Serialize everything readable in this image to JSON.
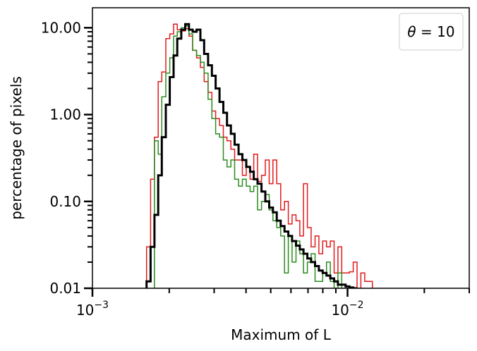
{
  "chart_data": {
    "type": "step-histogram",
    "xscale": "log",
    "yscale": "log",
    "xlim": [
      0.001,
      0.03
    ],
    "ylim": [
      0.01,
      17
    ],
    "xlabel": "Maximum of L",
    "ylabel": "percentage of pixels",
    "legend": {
      "text": "θ = 10",
      "placement": "top-right"
    },
    "x_major_ticks": [
      {
        "value": 0.001,
        "base": "10",
        "exp": "−3"
      },
      {
        "value": 0.01,
        "base": "10",
        "exp": "−2"
      }
    ],
    "x_minor_ticks": [
      0.002,
      0.003,
      0.004,
      0.005,
      0.006,
      0.007,
      0.008,
      0.009,
      0.02,
      0.03
    ],
    "y_major_ticks": [
      {
        "value": 0.01,
        "label": "0.01"
      },
      {
        "value": 0.1,
        "label": "0.10"
      },
      {
        "value": 1,
        "label": "1.00"
      },
      {
        "value": 10,
        "label": "10.00"
      }
    ],
    "series": [
      {
        "color": "#e31a1c",
        "width": 1.5,
        "edges": [
          0.00163,
          0.00169,
          0.00175,
          0.00181,
          0.00187,
          0.00194,
          0.00201,
          0.00208,
          0.00215,
          0.00223,
          0.00231,
          0.00239,
          0.00247,
          0.00256,
          0.00265,
          0.00274,
          0.00284,
          0.00294,
          0.00304,
          0.00315,
          0.00326,
          0.00337,
          0.00349,
          0.00361,
          0.00374,
          0.00387,
          0.00401,
          0.00415,
          0.00429,
          0.00444,
          0.0046,
          0.00476,
          0.00493,
          0.0051,
          0.00528,
          0.00547,
          0.00566,
          0.00586,
          0.00606,
          0.00628,
          0.0065,
          0.00672,
          0.00696,
          0.0072,
          0.00746,
          0.00772,
          0.00799,
          0.00827,
          0.00856,
          0.00886,
          0.00917,
          0.00949,
          0.00983,
          0.01017,
          0.01053,
          0.0109,
          0.01128,
          0.01168,
          0.01209,
          0.01251
        ],
        "values": [
          0.03,
          0.18,
          0.55,
          2.4,
          3.1,
          7.5,
          8.5,
          11.0,
          9.5,
          9.2,
          9.8,
          8.0,
          5.5,
          4.5,
          3.5,
          2.4,
          1.8,
          1.1,
          0.9,
          0.75,
          0.55,
          0.5,
          0.4,
          0.3,
          0.3,
          0.2,
          0.25,
          0.18,
          0.35,
          0.17,
          0.2,
          0.3,
          0.16,
          0.3,
          0.16,
          0.08,
          0.1,
          0.055,
          0.07,
          0.06,
          0.04,
          0.16,
          0.05,
          0.03,
          0.04,
          0.025,
          0.035,
          0.03,
          0.035,
          0.015,
          0.03,
          0.015,
          0.015,
          0.0155,
          0.02,
          0.01,
          0.015,
          0.012,
          0.012
        ]
      },
      {
        "color": "#2a8c1e",
        "width": 1.5,
        "edges": [
          0.00175,
          0.00181,
          0.00187,
          0.00194,
          0.00201,
          0.00208,
          0.00215,
          0.00223,
          0.00231,
          0.00239,
          0.00247,
          0.00256,
          0.00265,
          0.00274,
          0.00284,
          0.00294,
          0.00304,
          0.00315,
          0.00326,
          0.00337,
          0.00349,
          0.00361,
          0.00374,
          0.00387,
          0.00401,
          0.00415,
          0.00429,
          0.00444,
          0.0046,
          0.00476,
          0.00493,
          0.0051,
          0.00528,
          0.00547,
          0.00566,
          0.00586,
          0.00606,
          0.00628,
          0.0065,
          0.00672,
          0.00696,
          0.0072,
          0.00746,
          0.00772,
          0.00799,
          0.00827,
          0.00856,
          0.00886,
          0.00917,
          0.00949,
          0.00983
        ],
        "values": [
          0.5,
          0.35,
          1.6,
          3.0,
          4.5,
          8.0,
          9.0,
          10.0,
          10.5,
          8.5,
          5.5,
          4.8,
          4.0,
          3.0,
          1.5,
          0.9,
          0.6,
          0.55,
          0.3,
          0.25,
          0.3,
          0.18,
          0.15,
          0.18,
          0.15,
          0.13,
          0.15,
          0.08,
          0.1,
          0.12,
          0.08,
          0.06,
          0.05,
          0.04,
          0.015,
          0.04,
          0.02,
          0.035,
          0.025,
          0.015,
          0.02,
          0.025,
          0.012,
          0.012,
          0.015,
          0.02,
          0.012,
          0.01,
          0.015,
          0.01
        ]
      },
      {
        "color": "#000000",
        "width": 3,
        "edges": [
          0.00163,
          0.00169,
          0.00175,
          0.00181,
          0.00187,
          0.00194,
          0.00201,
          0.00208,
          0.00215,
          0.00223,
          0.00231,
          0.00239,
          0.00247,
          0.00256,
          0.00265,
          0.00274,
          0.00284,
          0.00294,
          0.00304,
          0.00315,
          0.00326,
          0.00337,
          0.00349,
          0.00361,
          0.00374,
          0.00387,
          0.00401,
          0.00415,
          0.00429,
          0.00444,
          0.0046,
          0.00476,
          0.00493,
          0.0051,
          0.00528,
          0.00547,
          0.00566,
          0.00586,
          0.00606,
          0.00628,
          0.0065,
          0.00672,
          0.00696,
          0.0072,
          0.00746,
          0.00772,
          0.00799,
          0.00827,
          0.00856,
          0.00886,
          0.00917,
          0.00949,
          0.00983,
          0.01017,
          0.01053,
          0.0109
        ],
        "values": [
          0.012,
          0.03,
          0.07,
          0.2,
          0.55,
          1.3,
          2.7,
          4.8,
          7.5,
          9.5,
          11.0,
          9.5,
          9.0,
          9.5,
          7.2,
          5.0,
          3.7,
          2.8,
          2.0,
          1.4,
          1.05,
          0.75,
          0.6,
          0.45,
          0.35,
          0.3,
          0.25,
          0.22,
          0.18,
          0.16,
          0.13,
          0.1,
          0.085,
          0.075,
          0.06,
          0.052,
          0.045,
          0.04,
          0.035,
          0.031,
          0.028,
          0.025,
          0.022,
          0.02,
          0.018,
          0.016,
          0.015,
          0.014,
          0.013,
          0.012,
          0.011,
          0.011,
          0.0105,
          0.0102,
          0.01
        ]
      }
    ]
  }
}
